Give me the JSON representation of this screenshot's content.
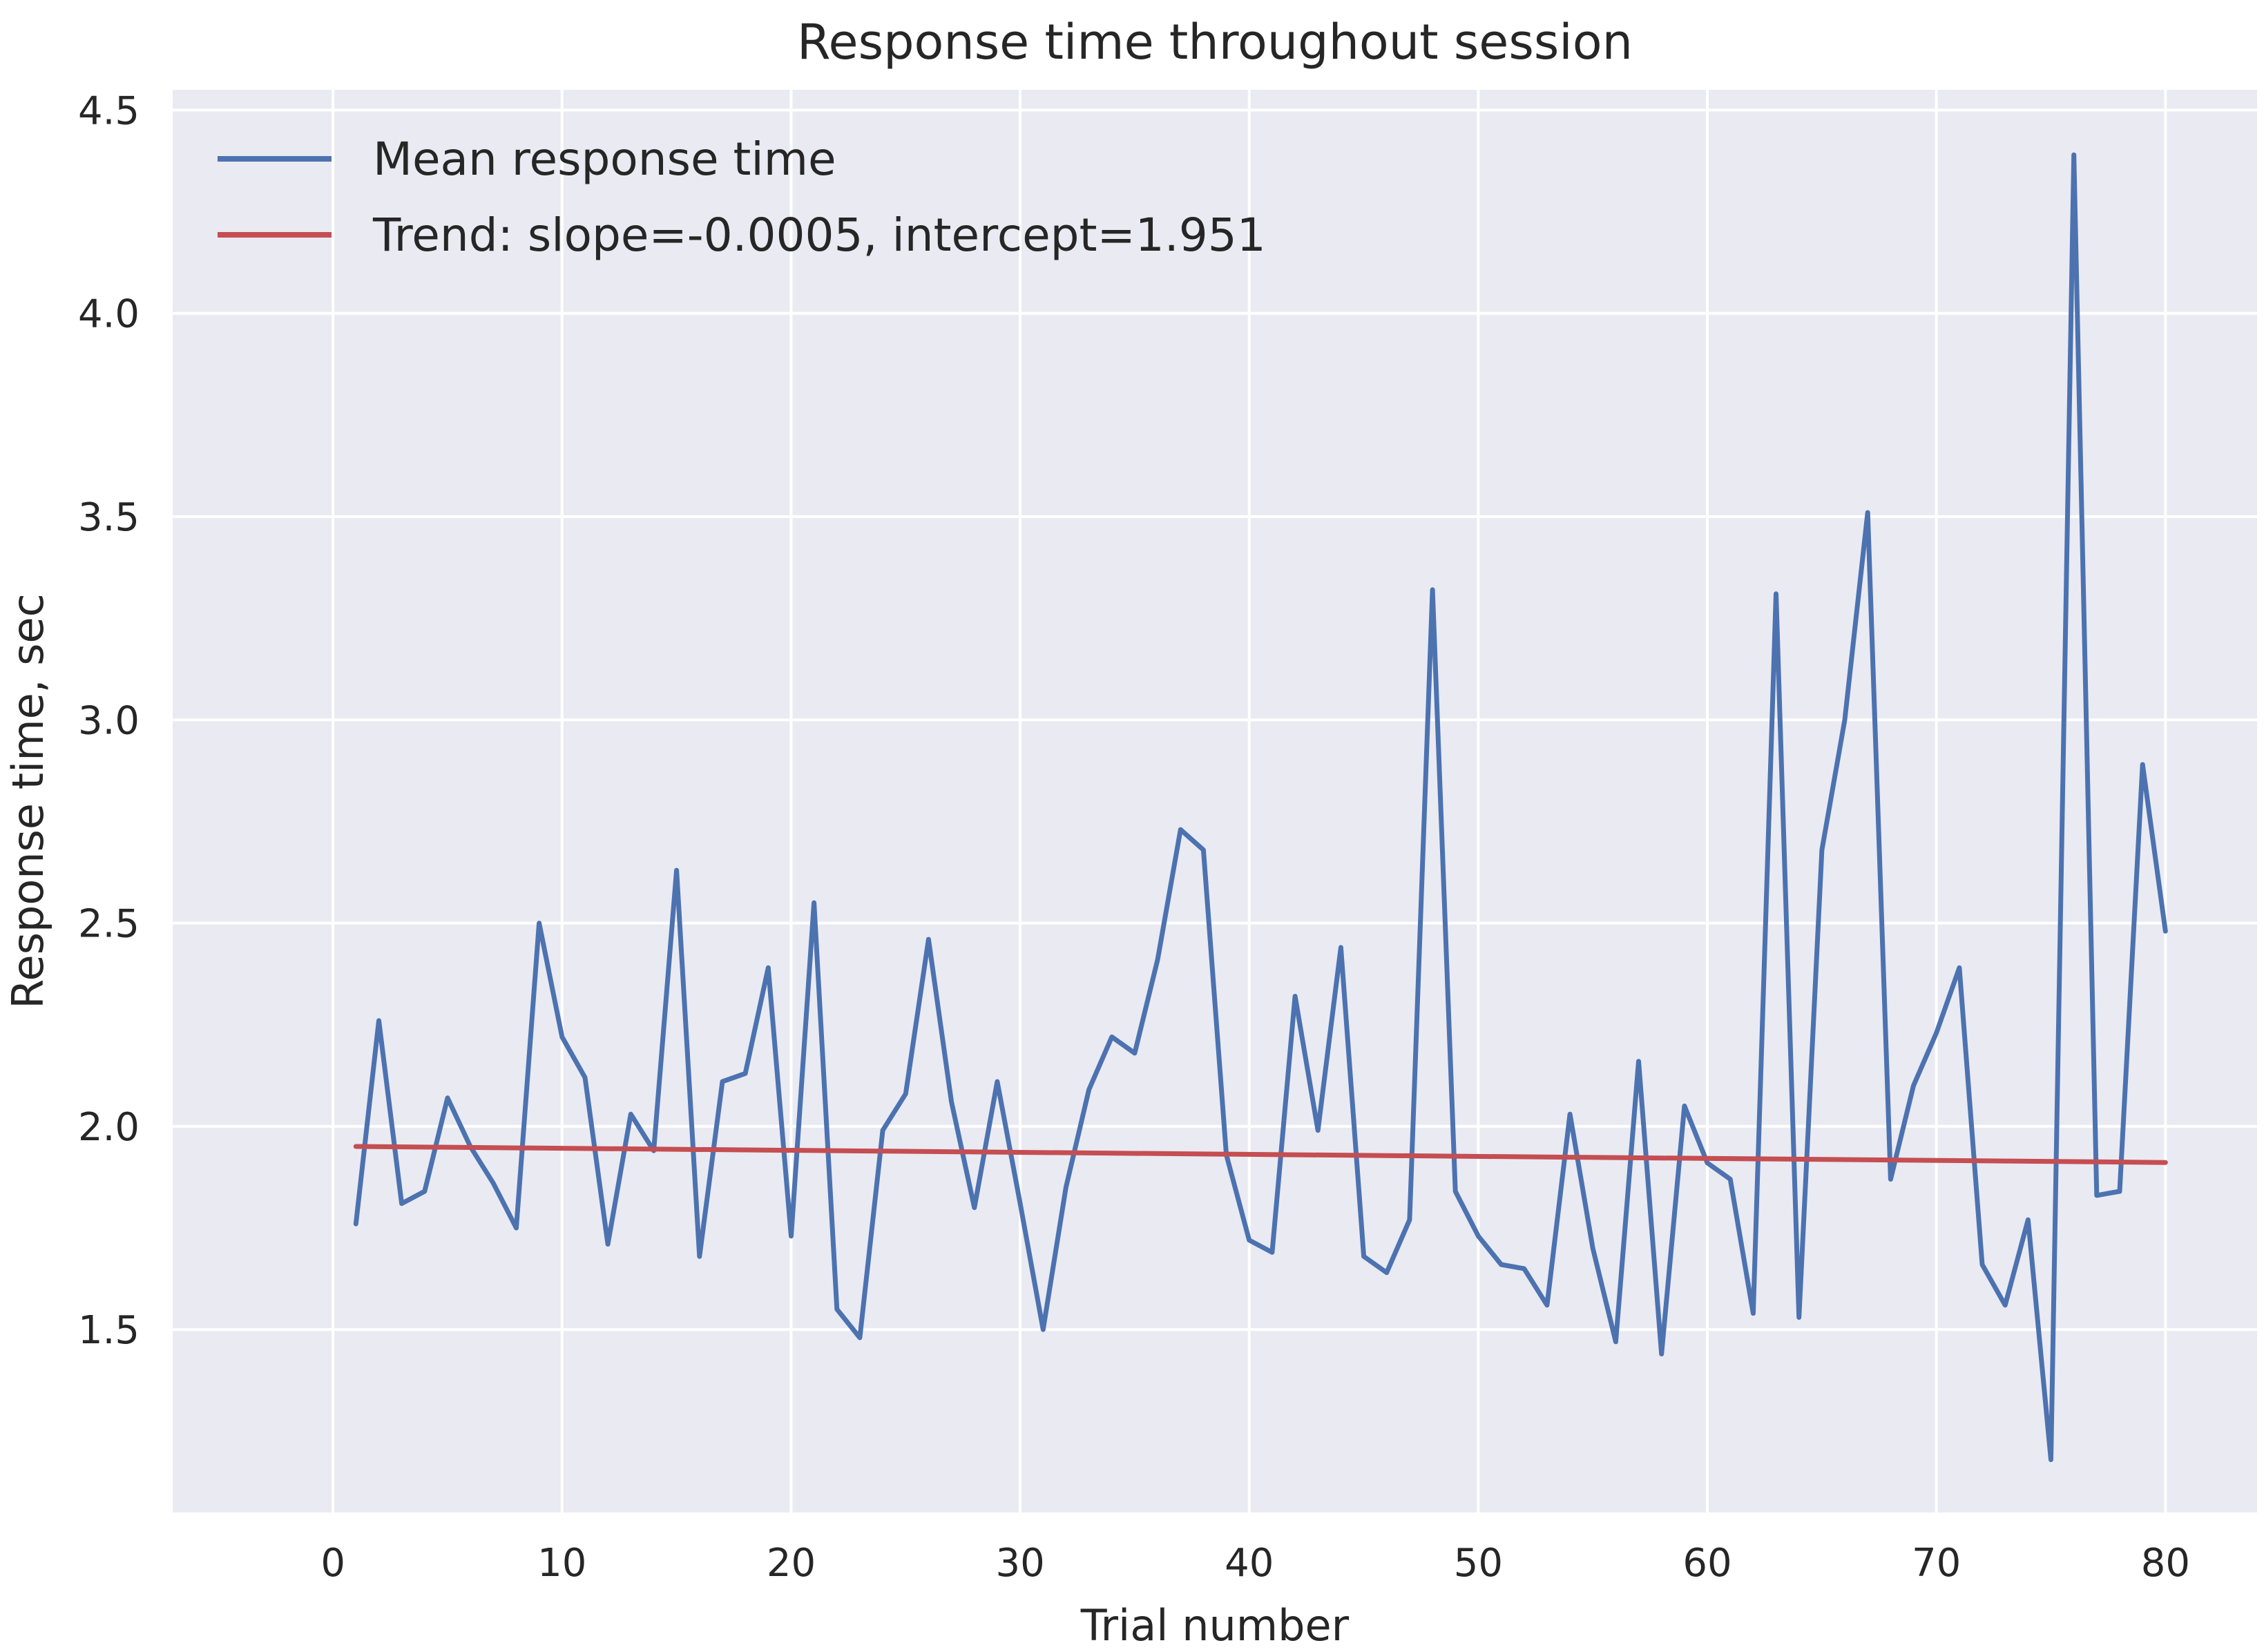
{
  "chart_data": {
    "type": "line",
    "title": "Response time throughout session",
    "xlabel": "Trial number",
    "ylabel": "Response time, sec",
    "xlim": [
      -7,
      84
    ],
    "ylim": [
      1.05,
      4.55
    ],
    "xticks": [
      0,
      10,
      20,
      30,
      40,
      50,
      60,
      70,
      80
    ],
    "yticks": [
      1.5,
      2.0,
      2.5,
      3.0,
      3.5,
      4.0,
      4.5
    ],
    "xtick_labels": [
      "0",
      "10",
      "20",
      "30",
      "40",
      "50",
      "60",
      "70",
      "80"
    ],
    "ytick_labels": [
      "1.5",
      "2.0",
      "2.5",
      "3.0",
      "3.5",
      "4.0",
      "4.5"
    ],
    "grid": true,
    "legend_position": "top-left",
    "background_color": "#eaeaf2",
    "series": [
      {
        "name": "Mean response time",
        "color": "#4c72b0",
        "x": [
          1,
          2,
          3,
          4,
          5,
          6,
          7,
          8,
          9,
          10,
          11,
          12,
          13,
          14,
          15,
          16,
          17,
          18,
          19,
          20,
          21,
          22,
          23,
          24,
          25,
          26,
          27,
          28,
          29,
          30,
          31,
          32,
          33,
          34,
          35,
          36,
          37,
          38,
          39,
          40,
          41,
          42,
          43,
          44,
          45,
          46,
          47,
          48,
          49,
          50,
          51,
          52,
          53,
          54,
          55,
          56,
          57,
          58,
          59,
          60,
          61,
          62,
          63,
          64,
          65,
          66,
          67,
          68,
          69,
          70,
          71,
          72,
          73,
          74,
          75,
          76,
          77,
          78,
          79,
          80
        ],
        "values": [
          1.76,
          2.26,
          1.81,
          1.84,
          2.07,
          1.95,
          1.86,
          1.75,
          2.5,
          2.22,
          2.12,
          1.71,
          2.03,
          1.94,
          2.63,
          1.68,
          2.11,
          2.13,
          2.39,
          1.73,
          2.55,
          1.55,
          1.48,
          1.99,
          2.08,
          2.46,
          2.06,
          1.8,
          2.11,
          1.81,
          1.5,
          1.85,
          2.09,
          2.22,
          2.18,
          2.41,
          2.73,
          2.68,
          1.93,
          1.72,
          1.69,
          2.32,
          1.99,
          2.44,
          1.68,
          1.64,
          1.77,
          3.32,
          1.84,
          1.73,
          1.66,
          1.65,
          1.56,
          2.03,
          1.7,
          1.47,
          2.16,
          1.44,
          2.05,
          1.91,
          1.87,
          1.54,
          3.31,
          1.53,
          2.68,
          3.0,
          3.51,
          1.87,
          2.1,
          2.23,
          2.39,
          1.66,
          1.56,
          1.77,
          1.18,
          4.39,
          1.83,
          1.84,
          2.89,
          2.48
        ]
      },
      {
        "name": "Trend: slope=-0.0005, intercept=1.951",
        "color": "#c44e52",
        "x": [
          1,
          80
        ],
        "values": [
          1.9505,
          1.911
        ]
      }
    ]
  }
}
